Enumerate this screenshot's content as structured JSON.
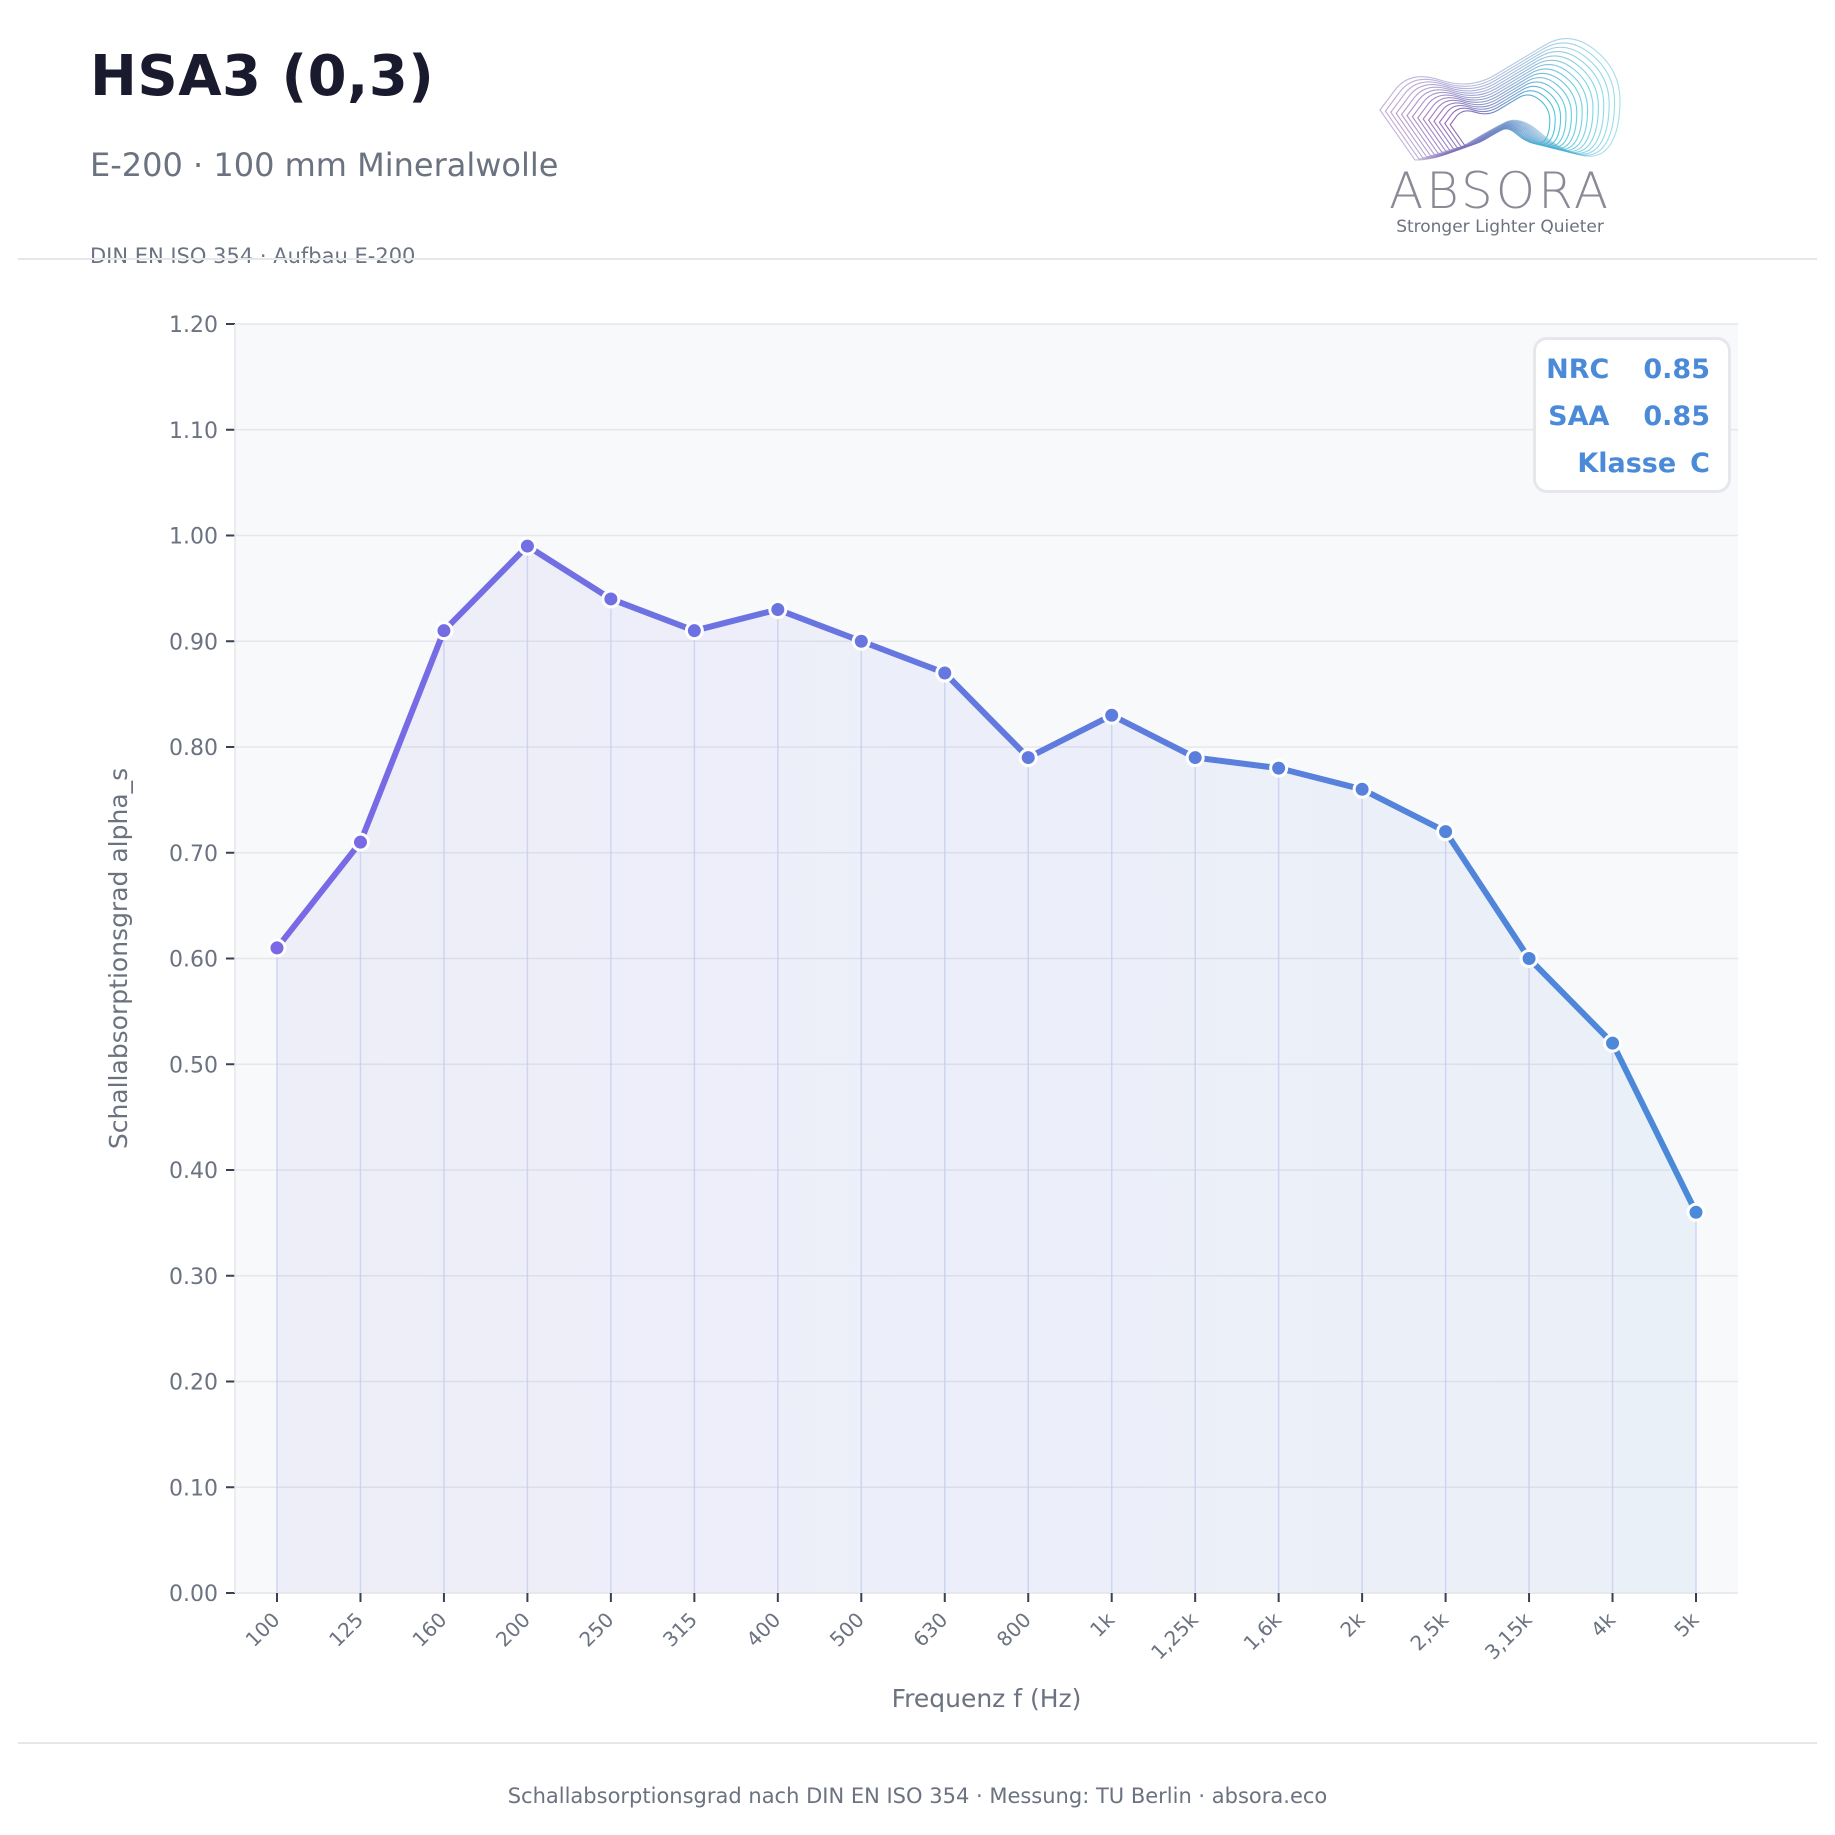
{
  "header": {
    "title": "HSA3 (0,3)",
    "subtitle": "E-200 · 100 mm Mineralwolle",
    "meta": "DIN EN ISO 354  ·  Aufbau E-200"
  },
  "logo": {
    "wordmark": "ABSORA",
    "tagline": "Stronger Lighter Quieter"
  },
  "footer": {
    "text": "Schallabsorptionsgrad nach DIN EN ISO 354  ·  Messung: TU Berlin  ·  absora.eco"
  },
  "legend": {
    "nrc_label": "NRC",
    "nrc_value": "0.85",
    "saa_label": "SAA",
    "saa_value": "0.85",
    "class_label": "Klasse",
    "class_value": "C"
  },
  "colors": {
    "line_start": "#7b68e6",
    "line_end": "#4a8ad8",
    "plot_bg": "#f8f9fb",
    "grid": "#e5e7eb"
  },
  "chart_data": {
    "type": "line",
    "categories": [
      "100",
      "125",
      "160",
      "200",
      "250",
      "315",
      "400",
      "500",
      "630",
      "800",
      "1k",
      "1,25k",
      "1,6k",
      "2k",
      "2,5k",
      "3,15k",
      "4k",
      "5k"
    ],
    "values": [
      0.61,
      0.71,
      0.91,
      0.99,
      0.94,
      0.91,
      0.93,
      0.9,
      0.87,
      0.79,
      0.83,
      0.79,
      0.78,
      0.76,
      0.72,
      0.6,
      0.52,
      0.36
    ],
    "xlabel": "Frequenz  f  (Hz)",
    "ylabel": "Schallabsorptionsgrad  alpha_s",
    "ylim": [
      0,
      1.2
    ],
    "yticks": [
      "0.00",
      "0.10",
      "0.20",
      "0.30",
      "0.40",
      "0.50",
      "0.60",
      "0.70",
      "0.80",
      "0.90",
      "1.00",
      "1.10",
      "1.20"
    ],
    "grid": true,
    "area_fill": true,
    "legend_position": "top-right"
  }
}
